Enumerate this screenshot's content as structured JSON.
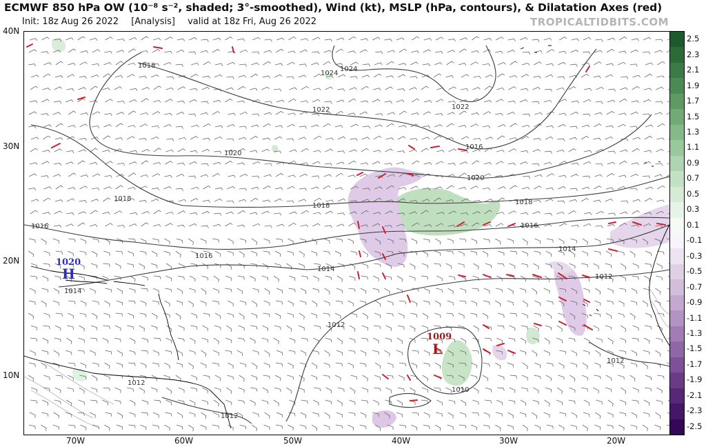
{
  "header": {
    "title": "ECMWF 850 hPa OW (10⁻⁸ s⁻², shaded; 3°-smoothed), Wind (kt), MSLP (hPa, contours), & Dilatation Axes (red)",
    "init": "Init: 18z Aug 26 2022",
    "analysis": "[Analysis]",
    "valid": "valid at 18z Fri, Aug 26 2022",
    "brand": "TROPICALTIDBITS.COM"
  },
  "axes": {
    "lat_labels": [
      "40N",
      "30N",
      "20N",
      "10N"
    ],
    "lon_labels": [
      "70W",
      "60W",
      "50W",
      "40W",
      "30W",
      "20W"
    ]
  },
  "colorbar": {
    "labels": [
      "2.5",
      "2.3",
      "2.1",
      "1.9",
      "1.7",
      "1.5",
      "1.3",
      "1.1",
      "0.9",
      "0.7",
      "0.5",
      "0.3",
      "0.1",
      "-0.1",
      "-0.3",
      "-0.5",
      "-0.7",
      "-0.9",
      "-1.1",
      "-1.3",
      "-1.5",
      "-1.7",
      "-1.9",
      "-2.1",
      "-2.3",
      "-2.5"
    ],
    "colors": [
      "#1e5a2e",
      "#2d6a3a",
      "#3c7a47",
      "#4c8a55",
      "#5e9a64",
      "#72aa76",
      "#86b989",
      "#9bc79d",
      "#b0d4b1",
      "#c4e0c5",
      "#d6ead6",
      "#e7f3e7",
      "#f6faf6",
      "#f8f5fa",
      "#eee4f1",
      "#e0d0e6",
      "#d2bddb",
      "#c3a8cf",
      "#b393c2",
      "#a27db4",
      "#9067a6",
      "#7d5197",
      "#6a3c87",
      "#572877",
      "#451767",
      "#330857"
    ]
  },
  "pressure_centers": [
    {
      "letter": "H",
      "value": "1020",
      "color": "#2b2bbf"
    },
    {
      "letter": "L",
      "value": "1009",
      "color": "#a01818"
    }
  ],
  "isobar_labels": [
    "1024",
    "1024",
    "1022",
    "1022",
    "1020",
    "1020",
    "1018",
    "1018",
    "1018",
    "1018",
    "1016",
    "1016",
    "1016",
    "1016",
    "1014",
    "1014",
    "1014",
    "1012",
    "1012",
    "1012",
    "1012",
    "1012",
    "1010"
  ],
  "colors": {
    "isobar": "#3a3a3a",
    "dilatation_axes": "#cc1f2e",
    "wind_barbs": "#555555",
    "ow_positive": "#b6dcb4",
    "ow_negative": "#d9c1e2"
  }
}
